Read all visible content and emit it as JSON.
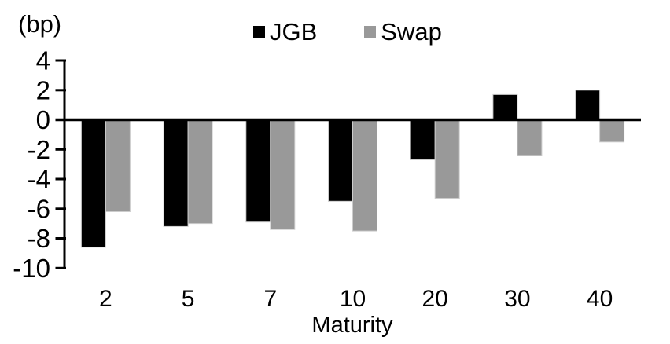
{
  "chart": {
    "unit_label": "(bp)",
    "x_axis_title": "Maturity"
  },
  "chart_data": {
    "type": "bar",
    "title": "",
    "unit_label": "(bp)",
    "xlabel": "Maturity",
    "ylabel": "(bp)",
    "categories": [
      "2",
      "5",
      "7",
      "10",
      "20",
      "30",
      "40"
    ],
    "series": [
      {
        "name": "JGB",
        "color": "#000000",
        "values": [
          -8.6,
          -7.2,
          -6.9,
          -5.5,
          -2.7,
          1.7,
          2.0
        ]
      },
      {
        "name": "Swap",
        "color": "#999999",
        "values": [
          -6.2,
          -7.0,
          -7.4,
          -7.5,
          -5.3,
          -2.4,
          -1.5
        ]
      }
    ],
    "ylim": [
      -10,
      4
    ],
    "yticks": [
      4,
      2,
      0,
      -2,
      -4,
      -6,
      -8,
      -10
    ],
    "grid": false,
    "legend_position": "top-center",
    "axis_color": "#000000",
    "bar_edge_color": "#cccccc",
    "background_color": "#ffffff"
  }
}
